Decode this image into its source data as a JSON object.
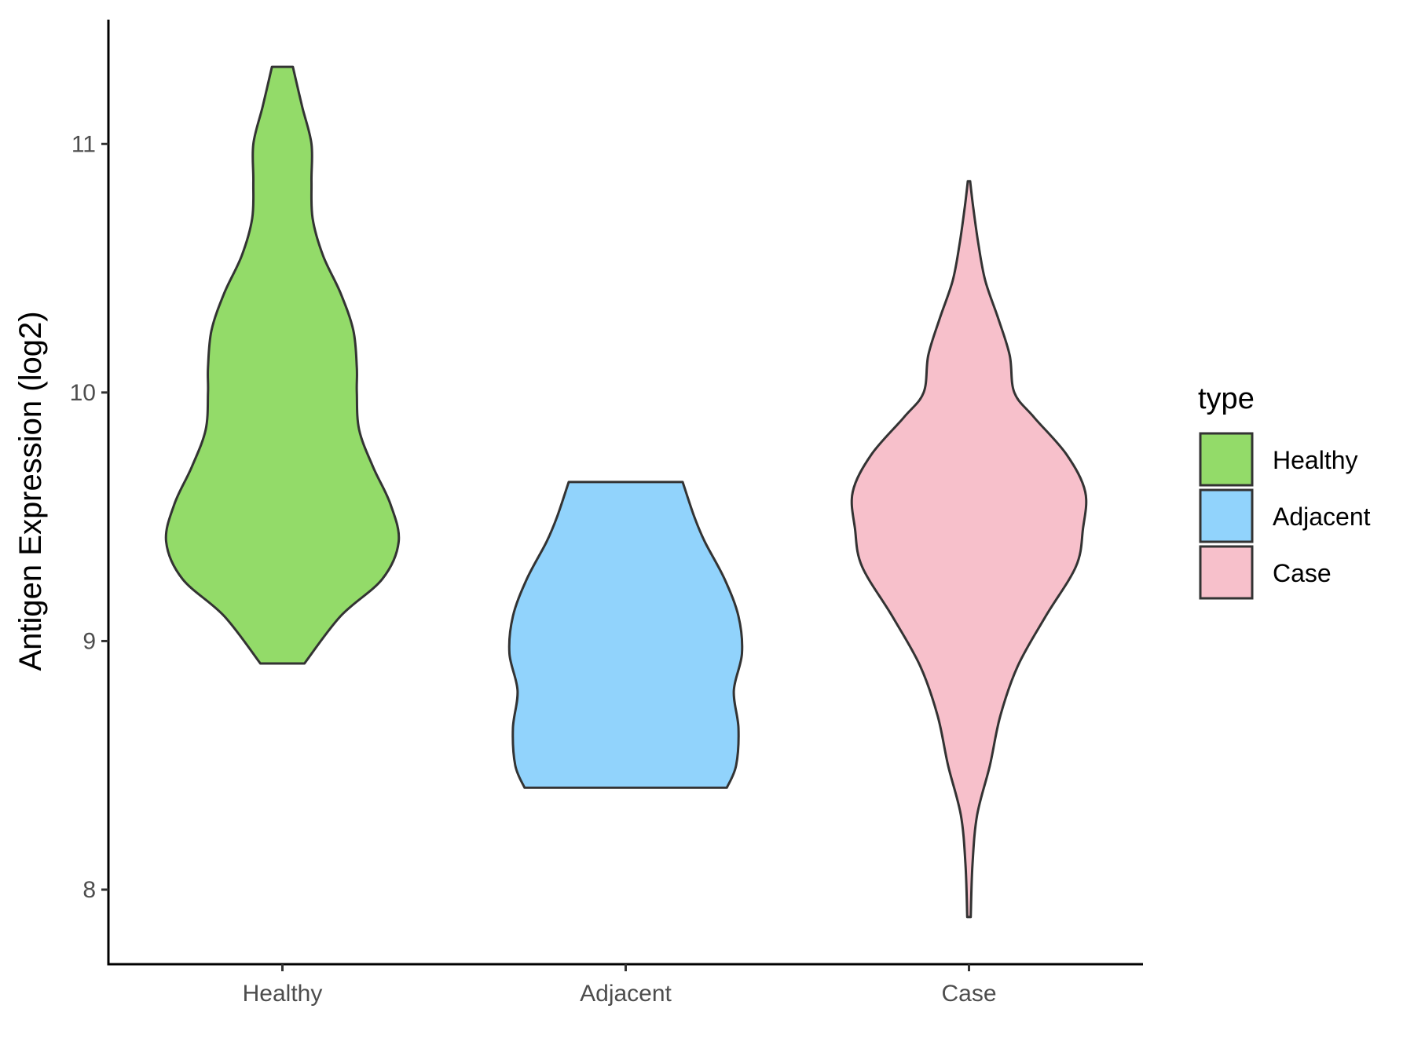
{
  "chart_data": {
    "type": "violin",
    "title": "",
    "xlabel": "",
    "ylabel": "Antigen Expression (log2)",
    "ylim": [
      7.7,
      11.5
    ],
    "yticks": [
      8,
      9,
      10,
      11
    ],
    "ytick_labels": [
      "8",
      "9",
      "10",
      "11"
    ],
    "categories": [
      "Healthy",
      "Adjacent",
      "Case"
    ],
    "grid": false,
    "legend": {
      "title": "type",
      "position": "right",
      "entries": [
        "Healthy",
        "Adjacent",
        "Case"
      ]
    },
    "series": [
      {
        "name": "Healthy",
        "color": "#93DB69",
        "min": 8.91,
        "max": 11.31,
        "density": [
          [
            8.91,
            0.19
          ],
          [
            9.1,
            0.5
          ],
          [
            9.25,
            0.86
          ],
          [
            9.4,
            1.0
          ],
          [
            9.55,
            0.93
          ],
          [
            9.7,
            0.78
          ],
          [
            9.85,
            0.66
          ],
          [
            10.0,
            0.64
          ],
          [
            10.1,
            0.64
          ],
          [
            10.25,
            0.61
          ],
          [
            10.4,
            0.5
          ],
          [
            10.55,
            0.35
          ],
          [
            10.7,
            0.26
          ],
          [
            10.85,
            0.25
          ],
          [
            11.0,
            0.25
          ],
          [
            11.15,
            0.17
          ],
          [
            11.31,
            0.09
          ]
        ]
      },
      {
        "name": "Adjacent",
        "color": "#91D3FC",
        "min": 8.41,
        "max": 9.64,
        "density": [
          [
            8.41,
            0.87
          ],
          [
            8.5,
            0.95
          ],
          [
            8.65,
            0.97
          ],
          [
            8.8,
            0.93
          ],
          [
            8.95,
            1.0
          ],
          [
            9.1,
            0.97
          ],
          [
            9.25,
            0.85
          ],
          [
            9.4,
            0.68
          ],
          [
            9.5,
            0.59
          ],
          [
            9.64,
            0.49
          ]
        ]
      },
      {
        "name": "Case",
        "color": "#F7C0CB",
        "min": 7.89,
        "max": 10.85,
        "density": [
          [
            7.89,
            0.015
          ],
          [
            8.1,
            0.03
          ],
          [
            8.3,
            0.07
          ],
          [
            8.5,
            0.18
          ],
          [
            8.7,
            0.27
          ],
          [
            8.9,
            0.42
          ],
          [
            9.1,
            0.66
          ],
          [
            9.3,
            0.92
          ],
          [
            9.45,
            0.98
          ],
          [
            9.6,
            1.0
          ],
          [
            9.75,
            0.84
          ],
          [
            9.9,
            0.56
          ],
          [
            10.0,
            0.39
          ],
          [
            10.15,
            0.35
          ],
          [
            10.3,
            0.25
          ],
          [
            10.45,
            0.14
          ],
          [
            10.6,
            0.08
          ],
          [
            10.75,
            0.035
          ],
          [
            10.85,
            0.01
          ]
        ]
      }
    ]
  }
}
